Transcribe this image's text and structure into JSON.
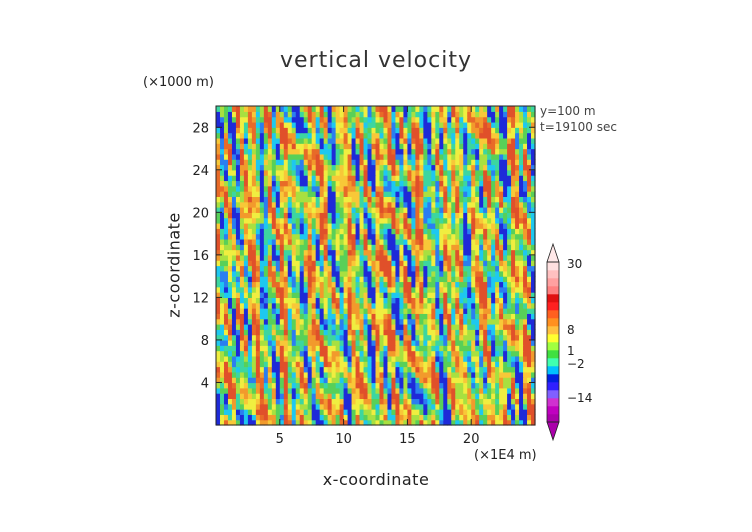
{
  "chart_data": {
    "type": "heatmap",
    "title": "vertical velocity",
    "xlabel": "x-coordinate",
    "ylabel": "z-coordinate",
    "x_unit_label": "(×1E4 m)",
    "y_unit_label": "(×1000 m)",
    "annotations": [
      "y=100 m",
      "t=19100 sec"
    ],
    "xlim": [
      0,
      25
    ],
    "ylim": [
      0,
      30
    ],
    "x_ticks": [
      5,
      10,
      15,
      20
    ],
    "y_ticks": [
      4,
      8,
      12,
      16,
      20,
      24,
      28
    ],
    "colorbar": {
      "labeled_levels": [
        "30",
        "8",
        "1",
        "-2",
        "-14"
      ],
      "colors": [
        "#aa00aa",
        "#c000c0",
        "#d030d0",
        "#8060ff",
        "#3020ff",
        "#0020e0",
        "#00c0ff",
        "#40ffb0",
        "#40e040",
        "#a0ff40",
        "#ffff30",
        "#ffc040",
        "#ff9020",
        "#ff6020",
        "#ff2020",
        "#e01010",
        "#ff8080",
        "#ffa0a0",
        "#ffc0c0",
        "#ffe0e0"
      ]
    },
    "field_colors": [
      "#1e2ad8",
      "#2b7ef0",
      "#1ec8f0",
      "#3cd6a0",
      "#58d058",
      "#a8e040",
      "#f0ee40",
      "#f8c838",
      "#f29a2c",
      "#e86a28",
      "#e0502a"
    ]
  }
}
